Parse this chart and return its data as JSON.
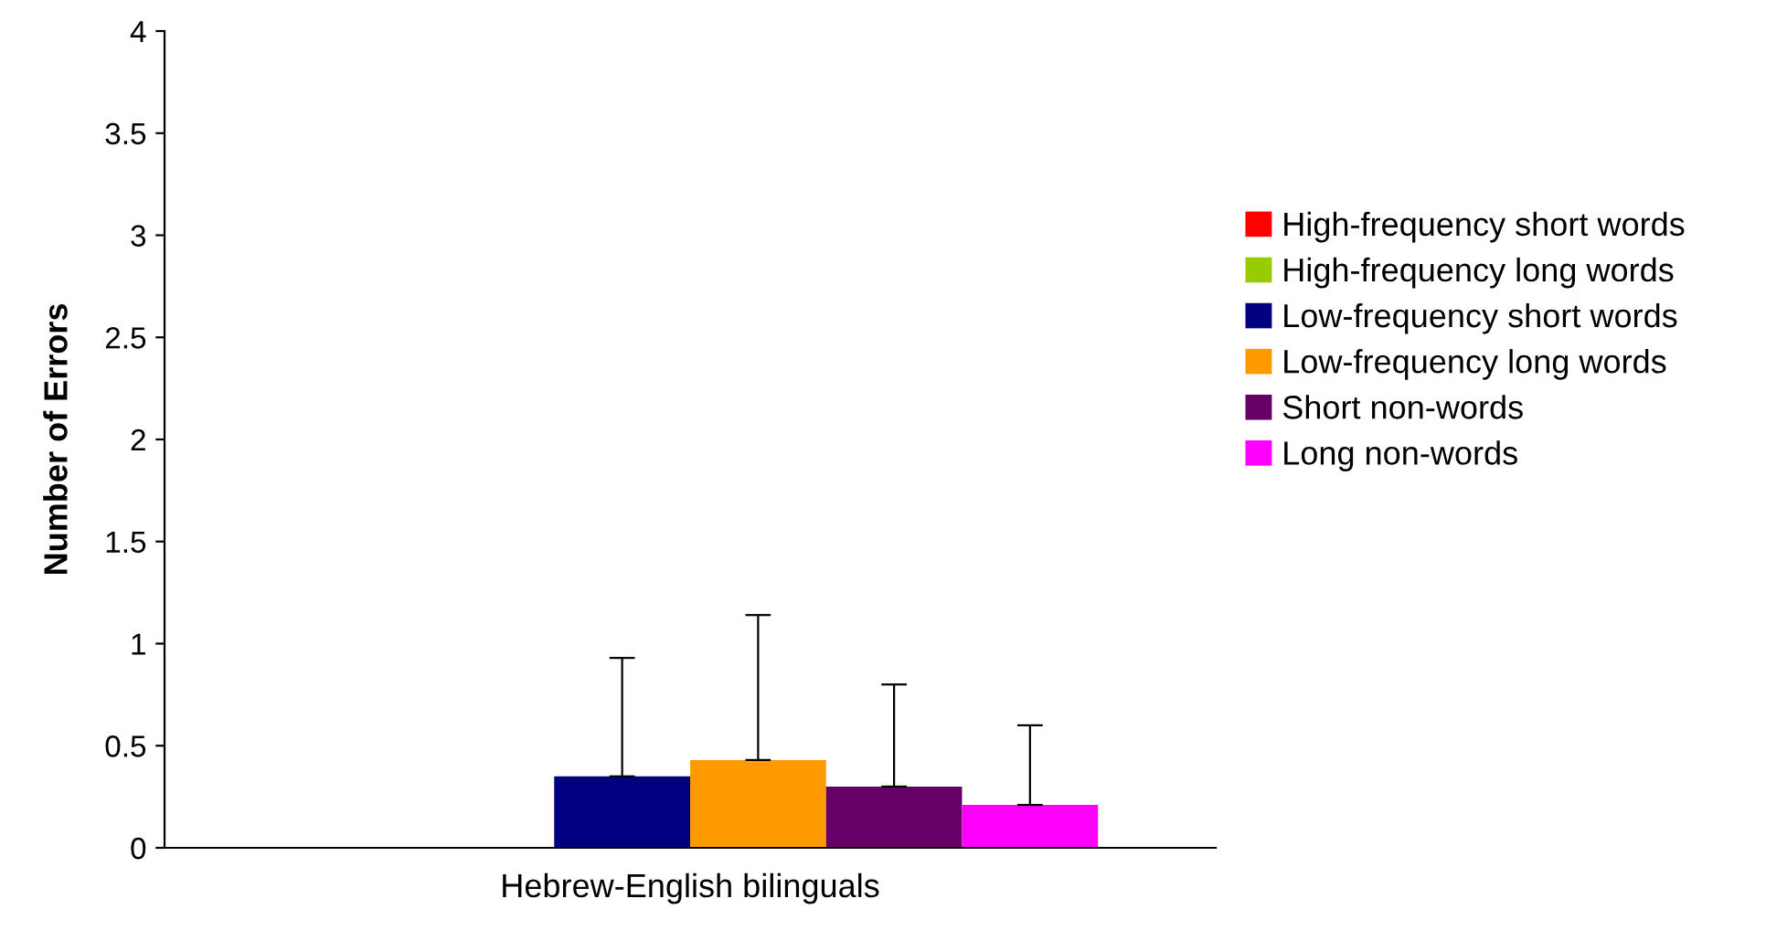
{
  "chart_data": {
    "type": "bar",
    "ylabel": "Number of Errors",
    "categories": [
      "Hebrew-English bilinguals"
    ],
    "series": [
      {
        "name": "High-frequency short words",
        "color": "#ff0000",
        "values": [
          0
        ],
        "errors": [
          null
        ]
      },
      {
        "name": "High-frequency long words",
        "color": "#99cc00",
        "values": [
          0
        ],
        "errors": [
          null
        ]
      },
      {
        "name": "Low-frequency short words",
        "color": "#000080",
        "values": [
          0.35
        ],
        "errors": [
          [
            0.35,
            0.93
          ]
        ]
      },
      {
        "name": "Low-frequency long words",
        "color": "#ff9900",
        "values": [
          0.43
        ],
        "errors": [
          [
            0.43,
            1.14
          ]
        ]
      },
      {
        "name": "Short non-words",
        "color": "#660066",
        "values": [
          0.3
        ],
        "errors": [
          [
            0.3,
            0.8
          ]
        ]
      },
      {
        "name": "Long non-words",
        "color": "#ff00ff",
        "values": [
          0.21
        ],
        "errors": [
          [
            0.21,
            0.6
          ]
        ]
      }
    ],
    "ylim": [
      0,
      4
    ],
    "yticks": [
      0,
      0.5,
      1,
      1.5,
      2,
      2.5,
      3,
      3.5,
      4
    ],
    "grid": false,
    "legend": "right"
  }
}
